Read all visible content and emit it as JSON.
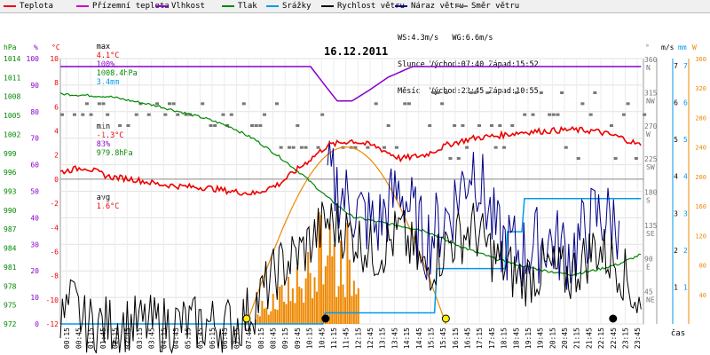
{
  "legend": [
    {
      "label": "Teplota",
      "color": "#ee0000",
      "left": 4
    },
    {
      "label": "Přízemní teplota",
      "color": "#cc00cc",
      "left": 86
    },
    {
      "label": "Vlhkost",
      "color": "#8800cc",
      "left": 175
    },
    {
      "label": "Tlak",
      "color": "#008800",
      "left": 250
    },
    {
      "label": "Srážky",
      "color": "#0099ee",
      "left": 300
    },
    {
      "label": "Rychlost větru",
      "color": "#000000",
      "left": 362
    },
    {
      "label": "Náraz větru",
      "color": "#000088",
      "left": 445
    },
    {
      "label": "Směr větru",
      "color": "#777777",
      "left": 513
    }
  ],
  "stats": {
    "max_label": "max",
    "max_temp": "4.1°C",
    "max_hum": "100%",
    "max_press": "1008.4hPa",
    "max_rain": "3.4mm",
    "min_label": "min",
    "min_temp": "-1.3°C",
    "min_hum": "83%",
    "min_press": "979.8hPa",
    "avg_label": "avg",
    "avg_temp": "1.6°C",
    "ws": "WS:4.3m/s",
    "wg": "WG:6.6m/s",
    "sun_label": "Slunce",
    "sun_rise": "Východ:07:40",
    "sun_set": "Západ:15:52",
    "moon_label": "Měsíc",
    "moon_rise": "Východ:22:45",
    "moon_set": "Západ:10:55"
  },
  "axis_headers": {
    "hpa": "hPa",
    "pct": "%",
    "degc": "°C",
    "deg": "°",
    "ms": "m/s",
    "mm": "mm",
    "w": "W",
    "time": "čas"
  },
  "chart_data": {
    "type": "line",
    "title": "16.12.2011",
    "x_range": [
      "00:00",
      "23:59"
    ],
    "x_ticks": [
      "00:15",
      "00:45",
      "01:15",
      "01:45",
      "02:15",
      "02:45",
      "03:15",
      "03:45",
      "04:15",
      "04:45",
      "05:15",
      "05:45",
      "06:15",
      "06:45",
      "07:15",
      "07:45",
      "08:15",
      "08:45",
      "09:15",
      "09:45",
      "10:15",
      "10:45",
      "11:15",
      "11:45",
      "12:15",
      "12:45",
      "13:15",
      "13:45",
      "14:15",
      "14:45",
      "15:15",
      "15:45",
      "16:15",
      "16:45",
      "17:15",
      "17:45",
      "18:15",
      "18:45",
      "19:15",
      "19:45",
      "20:15",
      "20:45",
      "21:15",
      "21:45",
      "22:15",
      "22:45",
      "23:15",
      "23:45"
    ],
    "left_axes": {
      "pressure_hpa": [
        "1014",
        "1011",
        "1008",
        "1005",
        "1002",
        "999",
        "996",
        "993",
        "990",
        "987",
        "984",
        "981",
        "978",
        "975",
        "972"
      ],
      "humidity_pct": [
        "100",
        "90",
        "80",
        "70",
        "60",
        "50",
        "40",
        "30",
        "20",
        "10",
        "0"
      ],
      "temperature_c": [
        "10",
        "8",
        "6",
        "4",
        "2",
        "0",
        "-2",
        "-4",
        "-6",
        "-8",
        "-10",
        "-12"
      ]
    },
    "right_axes": {
      "direction_deg": [
        "360",
        "315",
        "270",
        "225",
        "180",
        "135",
        "90",
        "45"
      ],
      "direction_names": [
        "N",
        "NW",
        "W",
        "SW",
        "S",
        "SE",
        "E",
        "NE"
      ],
      "wind_ms": [
        "7",
        "6",
        "5",
        "4",
        "3",
        "2",
        "1"
      ],
      "rain_mm": [
        "7",
        "6",
        "5",
        "4",
        "3",
        "2",
        "1"
      ],
      "radiation_w": [
        "360",
        "320",
        "280",
        "240",
        "200",
        "160",
        "120",
        "80",
        "40"
      ]
    },
    "series": [
      {
        "name": "Teplota",
        "color": "#ee0000",
        "points": [
          [
            0,
            0.6
          ],
          [
            1,
            1.0
          ],
          [
            2,
            0.2
          ],
          [
            3,
            0.0
          ],
          [
            4,
            -0.4
          ],
          [
            5,
            -0.6
          ],
          [
            6,
            -0.7
          ],
          [
            7,
            -1.0
          ],
          [
            8,
            -1.2
          ],
          [
            9,
            -0.4
          ],
          [
            10,
            1.2
          ],
          [
            11,
            2.8
          ],
          [
            12,
            3.2
          ],
          [
            13,
            2.7
          ],
          [
            14,
            1.7
          ],
          [
            15,
            2.0
          ],
          [
            16,
            2.9
          ],
          [
            17,
            3.4
          ],
          [
            18,
            3.6
          ],
          [
            19,
            3.9
          ],
          [
            20,
            4.0
          ],
          [
            21,
            4.1
          ],
          [
            22,
            4.0
          ],
          [
            23,
            3.5
          ],
          [
            23.9,
            2.8
          ]
        ]
      },
      {
        "name": "Vlhkost",
        "color": "#8800cc",
        "points": [
          [
            0,
            97
          ],
          [
            10.3,
            97
          ],
          [
            10.8,
            91
          ],
          [
            11.4,
            84
          ],
          [
            12.0,
            84
          ],
          [
            12.7,
            88
          ],
          [
            13.5,
            93
          ],
          [
            14.5,
            97
          ],
          [
            23.9,
            97
          ]
        ]
      },
      {
        "name": "Tlak",
        "color": "#008800",
        "points": [
          [
            0,
            1008.4
          ],
          [
            2,
            1008.0
          ],
          [
            4,
            1006.5
          ],
          [
            6,
            1004.5
          ],
          [
            7,
            1003.2
          ],
          [
            8,
            1001.2
          ],
          [
            9,
            998.5
          ],
          [
            10,
            995.5
          ],
          [
            11,
            992.0
          ],
          [
            12,
            989.0
          ],
          [
            13,
            988.2
          ],
          [
            14,
            987.5
          ],
          [
            15,
            986.8
          ],
          [
            16,
            985.0
          ],
          [
            17,
            983.5
          ],
          [
            18,
            982.2
          ],
          [
            19,
            981.2
          ],
          [
            20,
            980.4
          ],
          [
            21,
            979.8
          ],
          [
            22,
            980.5
          ],
          [
            23,
            981.5
          ],
          [
            23.9,
            983.0
          ]
        ]
      },
      {
        "name": "Srážky",
        "color": "#0099ee",
        "points": [
          [
            0,
            0
          ],
          [
            10.8,
            0
          ],
          [
            10.9,
            0.3
          ],
          [
            15.4,
            0.3
          ],
          [
            15.5,
            1.5
          ],
          [
            18.3,
            1.5
          ],
          [
            18.4,
            2.5
          ],
          [
            19.0,
            2.5
          ],
          [
            19.1,
            3.4
          ],
          [
            23.9,
            3.4
          ]
        ]
      },
      {
        "name": "Rychlost větru",
        "color": "#000000",
        "points": [
          [
            0,
            0
          ],
          [
            0.5,
            0.6
          ],
          [
            1.0,
            0
          ],
          [
            7.3,
            0
          ],
          [
            8.0,
            0.5
          ],
          [
            9.0,
            1.5
          ],
          [
            10.0,
            2.0
          ],
          [
            11.0,
            2.8
          ],
          [
            12.0,
            2.4
          ],
          [
            13.0,
            1.9
          ],
          [
            14.0,
            2.5
          ],
          [
            15.0,
            1.4
          ],
          [
            16.0,
            2.2
          ],
          [
            17.0,
            2.6
          ],
          [
            18.0,
            1.7
          ],
          [
            19.0,
            1.2
          ],
          [
            20.0,
            1.5
          ],
          [
            21.0,
            1.3
          ],
          [
            22.0,
            2.1
          ],
          [
            23.0,
            1.6
          ],
          [
            23.9,
            0.4
          ]
        ]
      },
      {
        "name": "Náraz větru",
        "color": "#000088",
        "points": [
          [
            11.0,
            4.0
          ],
          [
            12.0,
            3.2
          ],
          [
            13.0,
            2.6
          ],
          [
            14.0,
            3.7
          ],
          [
            15.0,
            2.2
          ],
          [
            16.0,
            3.0
          ],
          [
            17.0,
            4.4
          ],
          [
            18.0,
            2.3
          ],
          [
            19.0,
            1.9
          ],
          [
            20.0,
            2.3
          ],
          [
            21.0,
            1.9
          ],
          [
            22.0,
            2.9
          ],
          [
            23.0,
            2.8
          ]
        ]
      }
    ],
    "radiation": {
      "color": "#ee8800",
      "peak_w": 240,
      "sunrise": "07:40",
      "sunset": "15:52"
    },
    "direction": {
      "color": "#777777",
      "note": "dots"
    },
    "markers": [
      {
        "type": "sunrise",
        "time": "07:40",
        "color": "#ffee00"
      },
      {
        "type": "moonset",
        "time": "10:55",
        "color": "#000000"
      },
      {
        "type": "sunset",
        "time": "15:52",
        "color": "#ffee00"
      },
      {
        "type": "moonrise",
        "time": "22:45",
        "color": "#000000"
      }
    ]
  }
}
